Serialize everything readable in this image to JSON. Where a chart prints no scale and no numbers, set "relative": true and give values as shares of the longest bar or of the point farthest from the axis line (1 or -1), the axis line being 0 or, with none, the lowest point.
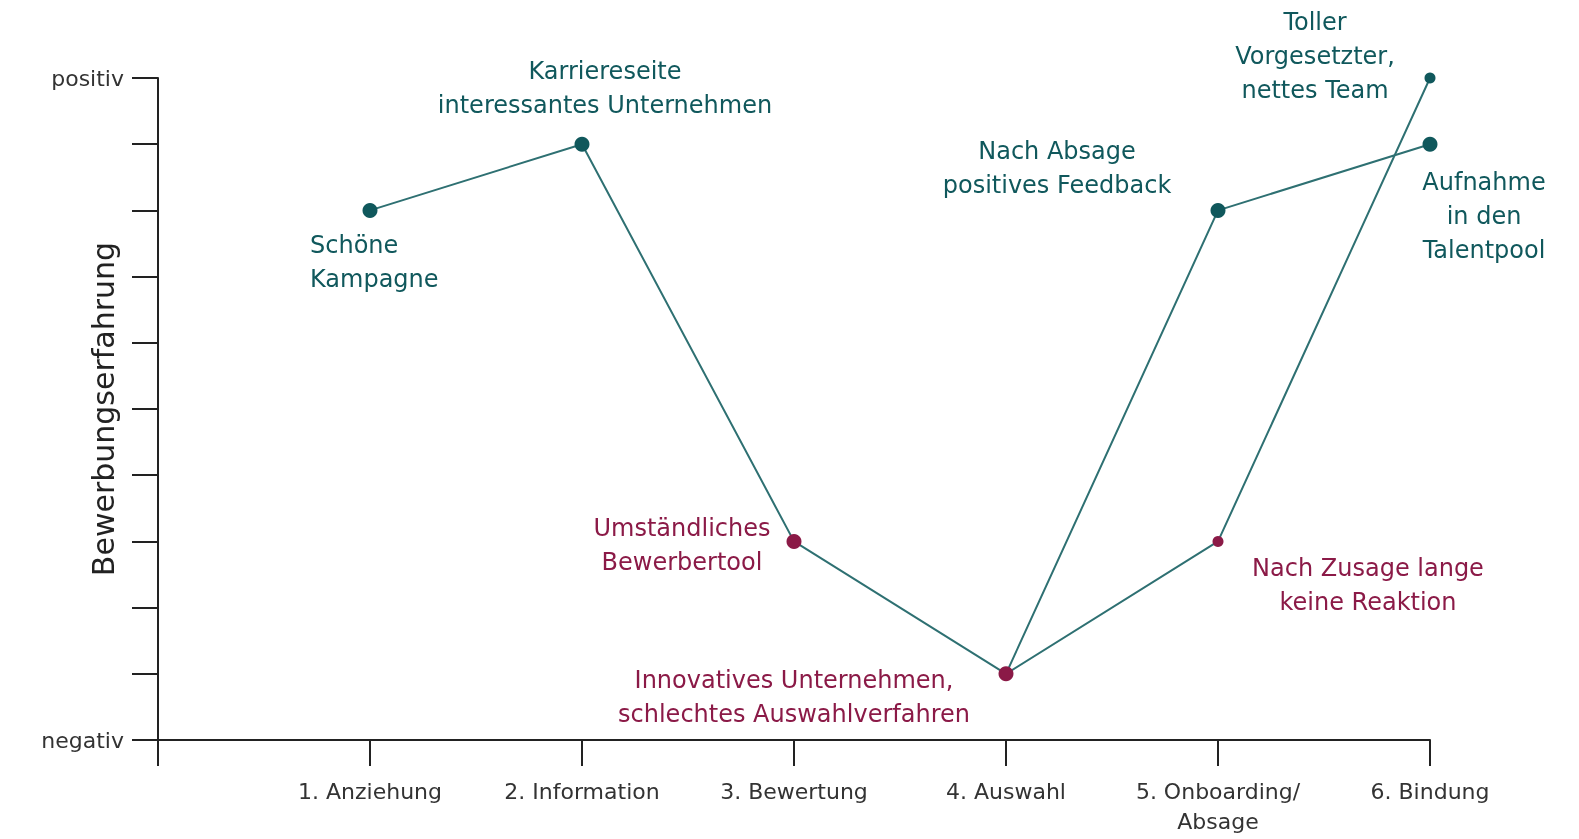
{
  "chart_data": {
    "type": "line",
    "ylabel": "Bewerbungserfahrung",
    "categories": [
      null,
      "1. Anziehung",
      "2. Information",
      "3. Bewertung",
      "4. Auswahl",
      "5. Onboarding/\nAbsage",
      "6. Bindung"
    ],
    "series": [
      {
        "color": "#2e7072",
        "values": [
          null,
          0.8,
          0.9,
          0.3,
          0.1,
          0.8,
          0.9
        ],
        "colors": [
          null,
          "#10585c",
          "#10585c",
          "#8b1a47",
          "#8b1a47",
          "#10585c",
          "#10585c"
        ]
      },
      {
        "color": "#2e7072",
        "values": [
          null,
          null,
          null,
          null,
          0.1,
          0.3,
          1
        ],
        "colors": [
          null,
          null,
          null,
          null,
          "#8b1a47",
          "#8b1a47",
          "#10585c"
        ]
      }
    ],
    "relative": true,
    "marker": "circle",
    "line_style": "solid",
    "grid": false,
    "annotations": [
      "positiv",
      "negativ",
      {
        "text": "Karriereseite\ninteressantes Unternehmen",
        "x": "2. Information",
        "y": 0.9
      },
      {
        "text": "Schöne\nKampagne",
        "x": "1. Anziehung",
        "y": 0.8
      },
      {
        "text": "Umständliches\nBewerbertool",
        "x": "3. Bewertung",
        "y": 0.3
      },
      {
        "text": "Innovatives Unternehmen,\nschlechtes Auswahlverfahren",
        "x": "4. Auswahl",
        "y": 0.1
      },
      {
        "text": "Nach Absage\npositives Feedback",
        "x": "5. Onboarding/\nAbsage",
        "y": 0.8
      },
      {
        "text": "Nach Zusage lange\nkeine Reaktion",
        "x": "5. Onboarding/\nAbsage",
        "y": 0.3
      },
      {
        "text": "Toller\nVorgesetzter,\nnettes Team",
        "x": "6. Bindung",
        "y": 1
      },
      {
        "text": "Aufnahme\nin den\nTalentpool",
        "x": "6. Bindung",
        "y": 0.9
      }
    ]
  }
}
